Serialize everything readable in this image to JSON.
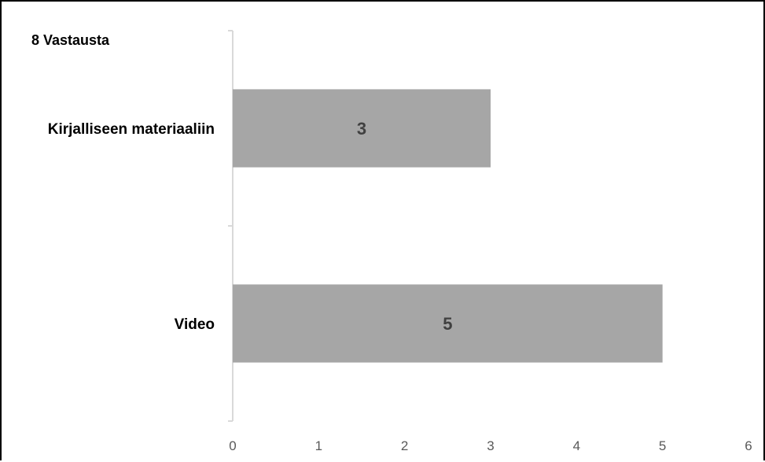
{
  "chart_data": {
    "type": "bar",
    "orientation": "horizontal",
    "title": "8 Vastausta",
    "categories": [
      "Kirjalliseen materiaaliin",
      "Video"
    ],
    "values": [
      3,
      5
    ],
    "data_labels": [
      "3",
      "5"
    ],
    "xlim": [
      0,
      6
    ],
    "x_ticks": [
      0,
      1,
      2,
      3,
      4,
      5,
      6
    ],
    "grid": false,
    "legend": "none",
    "colors": {
      "bar": "#a6a6a6",
      "axis": "#d9d9d9",
      "tick_text": "#595959",
      "data_label": "#404040",
      "border": "#000000"
    }
  }
}
